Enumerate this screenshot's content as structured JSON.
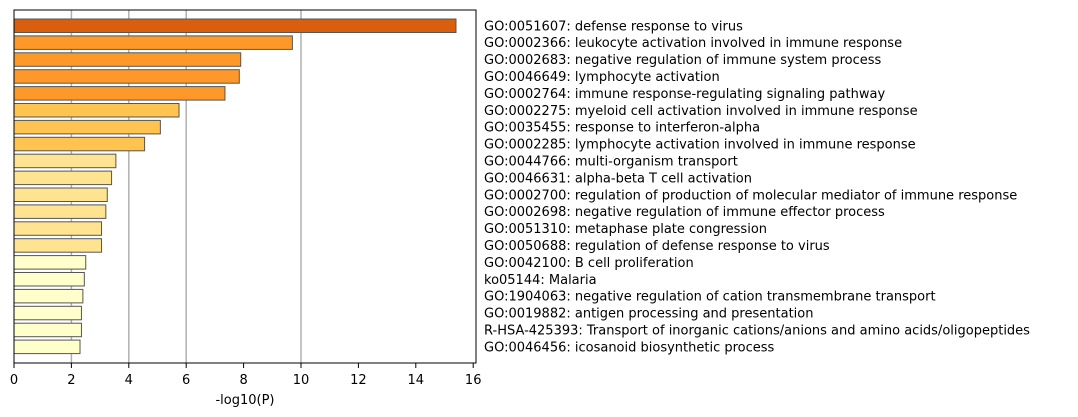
{
  "chart_data": {
    "type": "bar",
    "orientation": "horizontal",
    "xlabel": "-log10(P)",
    "ylabel": "",
    "title": "",
    "xlim": [
      0,
      16.1
    ],
    "xticks": [
      0,
      2,
      4,
      6,
      8,
      10,
      12,
      14,
      16
    ],
    "grid": {
      "x": true,
      "lines_at": [
        2,
        4,
        6,
        10
      ]
    },
    "legend": "none",
    "categories": [
      "GO:0051607: defense response to virus",
      "GO:0002366: leukocyte activation involved in immune response",
      "GO:0002683: negative regulation of immune system process",
      "GO:0046649: lymphocyte activation",
      "GO:0002764: immune response-regulating signaling pathway",
      "GO:0002275: myeloid cell activation involved in immune response",
      "GO:0035455: response to interferon-alpha",
      "GO:0002285: lymphocyte activation involved in immune response",
      "GO:0044766: multi-organism transport",
      "GO:0046631: alpha-beta T cell activation",
      "GO:0002700: regulation of production of molecular mediator of immune response",
      "GO:0002698: negative regulation of immune effector process",
      "GO:0051310: metaphase plate congression",
      "GO:0050688: regulation of defense response to virus",
      "GO:0042100: B cell proliferation",
      "ko05144: Malaria",
      "GO:1904063: negative regulation of cation transmembrane transport",
      "GO:0019882: antigen processing and presentation",
      "R-HSA-425393: Transport of inorganic cations/anions and amino acids/oligopeptides",
      "GO:0046456: icosanoid biosynthetic process"
    ],
    "values": [
      15.4,
      9.7,
      7.9,
      7.85,
      7.35,
      5.75,
      5.1,
      4.55,
      3.55,
      3.4,
      3.25,
      3.2,
      3.05,
      3.05,
      2.5,
      2.45,
      2.4,
      2.35,
      2.35,
      2.3
    ],
    "colors": [
      "#d95f0e",
      "#fe9929",
      "#fe9929",
      "#fe9929",
      "#fe9929",
      "#fec44f",
      "#fec44f",
      "#fec44f",
      "#fee391",
      "#fee391",
      "#fee391",
      "#fee391",
      "#fee391",
      "#fee391",
      "#ffffcc",
      "#ffffcc",
      "#ffffcc",
      "#ffffcc",
      "#ffffcc",
      "#ffffcc"
    ],
    "bar_edge_color": "#555555",
    "grid_color": "#b0b0b0"
  }
}
